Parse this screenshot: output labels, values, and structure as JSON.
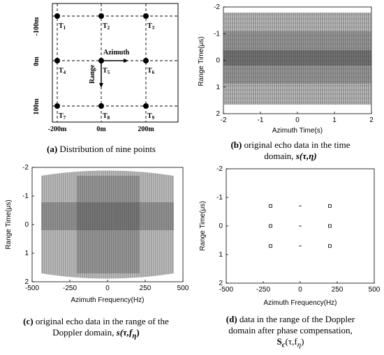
{
  "panel_a": {
    "y_ticks": [
      "-100m",
      "0m",
      "100m"
    ],
    "x_ticks": [
      "-200m",
      "0m",
      "200m"
    ],
    "points": [
      {
        "label": "T",
        "sub": "1"
      },
      {
        "label": "T",
        "sub": "2"
      },
      {
        "label": "T",
        "sub": "3"
      },
      {
        "label": "T",
        "sub": "4"
      },
      {
        "label": "T",
        "sub": "5"
      },
      {
        "label": "T",
        "sub": "6"
      },
      {
        "label": "T",
        "sub": "7"
      },
      {
        "label": "T",
        "sub": "8"
      },
      {
        "label": "T",
        "sub": "9"
      }
    ],
    "azimuth_arrow": "Azimuth",
    "range_arrow": "Range",
    "caption_tag": "(a)",
    "caption_text": " Distribution of nine points"
  },
  "panel_b": {
    "caption_tag": "(b)",
    "caption_line1": " original echo data in the time",
    "caption_line2": "domain, ",
    "caption_sym": "s(τ,η)"
  },
  "panel_c": {
    "caption_tag": "(c)",
    "caption_line1": " original echo data in the range of the",
    "caption_line2": "Doppler domain, ",
    "caption_sym": "s(τ,f",
    "caption_sub": "η",
    "caption_end": ")"
  },
  "panel_d": {
    "caption_tag": "(d)",
    "caption_line1": " data in the range of the Doppler",
    "caption_line2": "domain after phase compensation,",
    "caption_sym": "S",
    "caption_sym_sub": "c",
    "caption_sym_end": "(τ,f",
    "caption_sub2": "η",
    "caption_end2": ")"
  },
  "chart_data": [
    {
      "type": "heatmap",
      "title": "",
      "xlabel": "Azimuth Time(s)",
      "ylabel": "Range Time(μs)",
      "xlim": [
        -2,
        2
      ],
      "ylim": [
        2,
        -2
      ],
      "x_ticks": [
        "-2",
        "-1",
        "0",
        "1",
        "2"
      ],
      "y_ticks": [
        "-2",
        "-1",
        "0",
        "1",
        "2"
      ]
    },
    {
      "type": "heatmap",
      "title": "",
      "xlabel": "Azimuth Frequency(Hz)",
      "ylabel": "Range Time(μs)",
      "xlim": [
        -500,
        500
      ],
      "ylim": [
        2,
        -2
      ],
      "x_ticks": [
        "-500",
        "-250",
        "0",
        "250",
        "500"
      ],
      "y_ticks": [
        "-2",
        "-1",
        "0",
        "1",
        "2"
      ]
    },
    {
      "type": "scatter",
      "title": "",
      "xlabel": "Azimuth Frequency(Hz)",
      "ylabel": "Range Time(μs)",
      "xlim": [
        -500,
        500
      ],
      "ylim": [
        2,
        -2
      ],
      "x_ticks": [
        "-500",
        "-250",
        "0",
        "250",
        "500"
      ],
      "y_ticks": [
        "-2",
        "-1",
        "0",
        "1",
        "2"
      ],
      "x": [
        -200,
        0,
        200,
        -200,
        0,
        200,
        -200,
        0,
        200
      ],
      "y": [
        -0.7,
        -0.7,
        -0.7,
        0,
        0,
        0,
        0.7,
        0.7,
        0.7
      ]
    }
  ]
}
